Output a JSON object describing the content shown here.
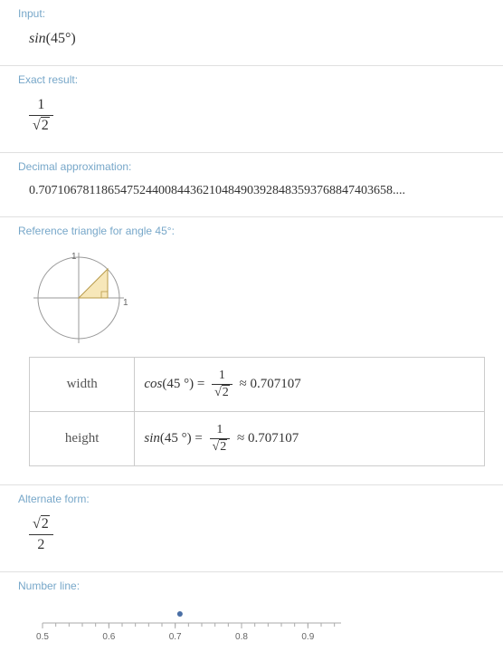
{
  "input": {
    "title": "Input:",
    "func": "sin",
    "arg": "(45°)"
  },
  "exact": {
    "title": "Exact result:",
    "numerator": "1",
    "den_radicand": "2"
  },
  "decimal": {
    "title": "Decimal approximation:",
    "value": "0.70710678118654752440084436210484903928483593768847403658...."
  },
  "reference": {
    "title": "Reference triangle for angle 45°:",
    "axis_label_y": "1",
    "axis_label_x": "1",
    "triangle_fill": "#f7e7b9",
    "triangle_stroke": "#b89b4a",
    "circle_stroke": "#999",
    "axis_stroke": "#999",
    "rows": [
      {
        "label": "width",
        "func": "cos",
        "arg": "(45 °) =",
        "num": "1",
        "den_rad": "2",
        "approx": "≈ 0.707107"
      },
      {
        "label": "height",
        "func": "sin",
        "arg": "(45 °) =",
        "num": "1",
        "den_rad": "2",
        "approx": "≈ 0.707107"
      }
    ]
  },
  "alternate": {
    "title": "Alternate form:",
    "num_radicand": "2",
    "denominator": "2"
  },
  "numberline": {
    "title": "Number line:",
    "ticks": [
      "0.5",
      "0.6",
      "0.7",
      "0.8",
      "0.9"
    ],
    "point_value": 0.7071,
    "min": 0.5,
    "max": 0.95,
    "point_color": "#4a6fa5",
    "axis_color": "#aaa"
  }
}
